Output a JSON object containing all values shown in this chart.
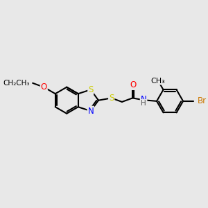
{
  "bg_color": "#e8e8e8",
  "bond_color": "#000000",
  "bond_width": 1.5,
  "atom_colors": {
    "S": "#cccc00",
    "N": "#0000ff",
    "O": "#ff0000",
    "Br": "#cc7700",
    "C": "#000000",
    "H": "#555555"
  },
  "font_size": 8.5,
  "fig_size": [
    3.0,
    3.0
  ],
  "dpi": 100
}
